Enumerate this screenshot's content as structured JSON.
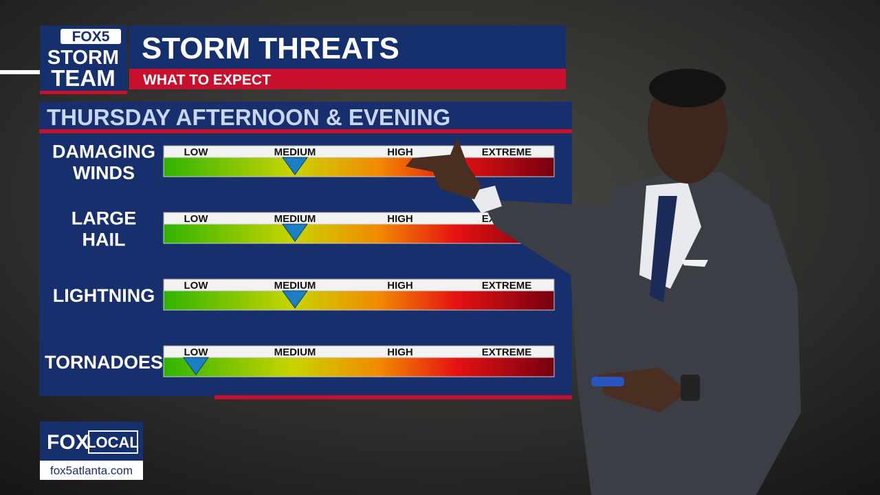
{
  "logo": {
    "line1": "FOX5",
    "line2": "STORM",
    "line3": "TEAM"
  },
  "header": {
    "title": "STORM THREATS",
    "subtitle": "WHAT TO EXPECT"
  },
  "section": {
    "title": "THURSDAY AFTERNOON & EVENING"
  },
  "threats": [
    {
      "label": [
        "DAMAGING",
        "WINDS"
      ],
      "levels": [
        "LOW",
        "MEDIUM",
        "HIGH",
        "EXTREME"
      ],
      "level": 1
    },
    {
      "label": [
        "LARGE",
        "HAIL"
      ],
      "levels": [
        "LOW",
        "MEDIUM",
        "HIGH",
        "EXTREME"
      ],
      "level": 1
    },
    {
      "label": [
        "LIGHTNING"
      ],
      "levels": [
        "LOW",
        "MEDIUM",
        "HIGH",
        "EXTREME"
      ],
      "level": 1
    },
    {
      "label": [
        "TORNADOES"
      ],
      "levels": [
        "LOW",
        "MEDIUM",
        "HIGH",
        "EXTREME"
      ],
      "level": 0
    }
  ],
  "footer": {
    "brand": "FOX",
    "brand_suffix": "LOCAL",
    "url": "fox5atlanta.com"
  }
}
